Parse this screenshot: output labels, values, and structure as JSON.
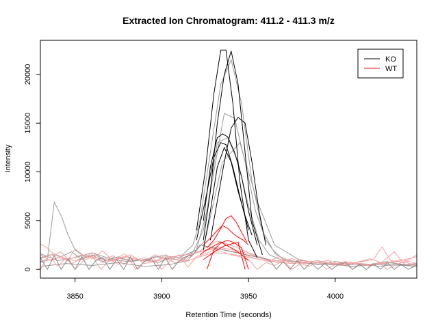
{
  "chart_data": {
    "type": "line",
    "title": "Extracted Ion Chromatogram: 411.2 - 411.3 m/z",
    "xlabel": "Retention Time (seconds)",
    "ylabel": "Intensity",
    "xlim": [
      3830,
      4047
    ],
    "ylim": [
      -900,
      23500
    ],
    "xticks": [
      3850,
      3900,
      3950,
      4000
    ],
    "yticks": [
      0,
      5000,
      10000,
      15000,
      20000
    ],
    "grid": false,
    "legend": {
      "position": "top-right",
      "entries": [
        {
          "label": "KO",
          "color": "#000000"
        },
        {
          "label": "WT",
          "color": "#ff0000"
        }
      ]
    },
    "series": [
      {
        "group": "KO",
        "color": "#000000",
        "x": [
          3920,
          3925,
          3930,
          3934,
          3937,
          3941,
          3945,
          3950,
          3955
        ],
        "y": [
          4000,
          10000,
          18000,
          22500,
          22500,
          17000,
          9000,
          3000,
          1200
        ]
      },
      {
        "group": "KO",
        "color": "#000000",
        "x": [
          3924,
          3928,
          3932,
          3936,
          3940,
          3944,
          3948,
          3952,
          3958
        ],
        "y": [
          3000,
          8000,
          15000,
          20000,
          22400,
          19000,
          12000,
          5000,
          1500
        ]
      },
      {
        "group": "KO",
        "color": "#000000",
        "x": [
          3924,
          3928,
          3932,
          3935,
          3938,
          3942,
          3946,
          3950,
          3955
        ],
        "y": [
          5000,
          10500,
          13500,
          13900,
          13600,
          12000,
          9500,
          6000,
          2500
        ]
      },
      {
        "group": "KO",
        "color": "#000000",
        "x": [
          3928,
          3932,
          3936,
          3940,
          3944,
          3948,
          3952,
          3956,
          3960
        ],
        "y": [
          3000,
          7000,
          11000,
          14500,
          15600,
          15000,
          11000,
          6000,
          2500
        ]
      },
      {
        "group": "KO",
        "color": "#000000",
        "x": [
          3920,
          3925,
          3930,
          3934,
          3937,
          3941,
          3945,
          3950
        ],
        "y": [
          3000,
          7000,
          11500,
          13000,
          12800,
          10500,
          7500,
          4000
        ]
      },
      {
        "group": "KO",
        "color": "#000000",
        "x": [
          3924,
          3928,
          3932,
          3936,
          3940,
          3944,
          3948,
          3952
        ],
        "y": [
          2000,
          6000,
          10500,
          12500,
          11000,
          8000,
          5500,
          3500
        ]
      },
      {
        "group": "KO",
        "color": "#999999",
        "x": [
          3830,
          3834,
          3838,
          3842,
          3846,
          3850,
          3856,
          3862,
          3868,
          3875,
          3882,
          3890,
          3898,
          3905,
          3912,
          3918,
          3922,
          3928,
          3934,
          3940,
          3946,
          3952,
          3958,
          3964,
          3970,
          3978,
          3986,
          3995,
          4005,
          4015,
          4025,
          4035,
          4047
        ],
        "y": [
          800,
          1000,
          6900,
          5500,
          3500,
          2000,
          1200,
          1500,
          900,
          1300,
          800,
          1000,
          700,
          1200,
          1500,
          2500,
          5000,
          12000,
          19000,
          21500,
          17000,
          9000,
          4000,
          2000,
          1000,
          800,
          600,
          500,
          400,
          600,
          300,
          500,
          400
        ]
      },
      {
        "group": "KO",
        "color": "#999999",
        "x": [
          3830,
          3836,
          3842,
          3848,
          3854,
          3860,
          3866,
          3872,
          3880,
          3888,
          3896,
          3904,
          3912,
          3918,
          3924,
          3930,
          3936,
          3942,
          3948,
          3954,
          3960,
          3966,
          3972,
          3980,
          3990,
          4000,
          4010,
          4020,
          4030,
          4040,
          4047
        ],
        "y": [
          1200,
          1500,
          1300,
          1800,
          1000,
          1500,
          800,
          1200,
          1000,
          900,
          1300,
          1100,
          900,
          1800,
          4000,
          10000,
          16000,
          15500,
          11000,
          6000,
          3000,
          1500,
          1000,
          700,
          500,
          800,
          600,
          400,
          700,
          500,
          600
        ]
      },
      {
        "group": "KO",
        "color": "#999999",
        "x": [
          3830,
          3840,
          3850,
          3860,
          3870,
          3880,
          3890,
          3900,
          3910,
          3920,
          3926,
          3932,
          3938,
          3944,
          3950,
          3956,
          3962,
          3970,
          3980,
          3990,
          4000,
          4010,
          4020,
          4030,
          4040,
          4047
        ],
        "y": [
          1600,
          900,
          1200,
          1700,
          1100,
          800,
          1000,
          1400,
          1200,
          2000,
          6000,
          13000,
          13500,
          11000,
          6500,
          3000,
          1500,
          900,
          700,
          500,
          600,
          300,
          500,
          800,
          400,
          300
        ]
      },
      {
        "group": "KO",
        "color": "#999999",
        "x": [
          3830,
          3845,
          3860,
          3875,
          3890,
          3905,
          3915,
          3925,
          3935,
          3945,
          3955,
          3965,
          3980,
          3995,
          4010,
          4025,
          4040,
          4047
        ],
        "y": [
          300,
          600,
          400,
          700,
          300,
          500,
          900,
          3000,
          11000,
          13000,
          7000,
          2500,
          900,
          600,
          300,
          500,
          400,
          500
        ]
      },
      {
        "group": "WT",
        "color": "#ff0000",
        "x": [
          3924,
          3928,
          3932,
          3935,
          3938,
          3941,
          3944,
          3947,
          3950
        ],
        "y": [
          2500,
          3200,
          4000,
          4500,
          4200,
          3700,
          3300,
          3000,
          2500
        ]
      },
      {
        "group": "WT",
        "color": "#ff0000",
        "x": [
          3926,
          3930,
          3934,
          3937,
          3940,
          3943,
          3946,
          3949
        ],
        "y": [
          2200,
          3000,
          4200,
          5200,
          5500,
          4800,
          3800,
          2800
        ]
      },
      {
        "group": "WT",
        "color": "#ff0000",
        "x": [
          3922,
          3926,
          3930,
          3934,
          3938,
          3942,
          3946,
          3950
        ],
        "y": [
          1500,
          2000,
          2400,
          2800,
          2400,
          2000,
          1500,
          900
        ]
      },
      {
        "group": "WT",
        "color": "#ff0000",
        "x": [
          3926,
          3930,
          3934,
          3938,
          3942,
          3946,
          3950
        ],
        "y": [
          0,
          2000,
          2700,
          3000,
          2700,
          2200,
          0
        ]
      },
      {
        "group": "WT",
        "color": "#ff0000",
        "x": [
          3924,
          3928,
          3932,
          3936,
          3940,
          3944,
          3948
        ],
        "y": [
          1000,
          1500,
          2000,
          2400,
          2600,
          2800,
          0
        ]
      },
      {
        "group": "WT",
        "color": "#f4a0a0",
        "x": [
          3830,
          3834,
          3838,
          3842,
          3846,
          3850,
          3855,
          3860,
          3866,
          3872,
          3878,
          3884,
          3890,
          3896,
          3902,
          3908,
          3914,
          3920,
          3926,
          3932,
          3938,
          3944,
          3950,
          3956,
          3962,
          3968,
          3975,
          3982,
          3990,
          3998,
          4006,
          4014,
          4022,
          4030,
          4038,
          4047
        ],
        "y": [
          2600,
          2200,
          1500,
          1800,
          1000,
          2100,
          1400,
          1100,
          1900,
          800,
          1600,
          900,
          1200,
          700,
          1500,
          1000,
          1300,
          1700,
          2300,
          2900,
          2600,
          2200,
          1700,
          1300,
          1000,
          800,
          1100,
          700,
          900,
          500,
          800,
          600,
          500,
          700,
          1000,
          600
        ]
      },
      {
        "group": "WT",
        "color": "#f4a0a0",
        "x": [
          3830,
          3836,
          3842,
          3848,
          3854,
          3860,
          3866,
          3872,
          3878,
          3884,
          3890,
          3896,
          3902,
          3908,
          3914,
          3920,
          3926,
          3932,
          3938,
          3944,
          3950,
          3956,
          3962,
          3968,
          3974,
          3980,
          3988,
          3996,
          4004,
          4012,
          4020,
          4028,
          4036,
          4047
        ],
        "y": [
          1500,
          900,
          1300,
          600,
          1100,
          1700,
          1000,
          1400,
          500,
          1200,
          800,
          1500,
          1100,
          700,
          1000,
          1800,
          2000,
          2300,
          2100,
          1900,
          1600,
          1200,
          900,
          1300,
          600,
          1000,
          700,
          900,
          400,
          700,
          1100,
          600,
          800,
          1300
        ]
      },
      {
        "group": "WT",
        "color": "#f4a0a0",
        "x": [
          3830,
          3838,
          3846,
          3854,
          3862,
          3870,
          3878,
          3886,
          3894,
          3902,
          3910,
          3918,
          3924,
          3930,
          3936,
          3942,
          3948,
          3954,
          3960,
          3968,
          3976,
          3986,
          3996,
          4006,
          4016,
          4026,
          4034,
          4040,
          4047
        ],
        "y": [
          1100,
          1600,
          1000,
          1500,
          1200,
          900,
          1300,
          1000,
          800,
          1200,
          1400,
          1600,
          1900,
          2100,
          2000,
          1800,
          1500,
          1100,
          900,
          700,
          600,
          800,
          500,
          700,
          400,
          600,
          1800,
          500,
          400
        ]
      },
      {
        "group": "WT",
        "color": "#f4a0a0",
        "x": [
          3830,
          3840,
          3850,
          3858,
          3866,
          3874,
          3882,
          3890,
          3898,
          3906,
          3914,
          3922,
          3930,
          3938,
          3946,
          3954,
          3962,
          3972,
          3982,
          3992,
          4002,
          4012,
          4022,
          4027,
          4032,
          4040,
          4047
        ],
        "y": [
          700,
          1200,
          900,
          1400,
          700,
          1000,
          1500,
          600,
          900,
          1100,
          800,
          1300,
          1700,
          1600,
          1400,
          1100,
          800,
          1000,
          600,
          800,
          500,
          700,
          1000,
          2300,
          900,
          700,
          1500
        ]
      },
      {
        "group": "WT",
        "color": "#f4a0a0",
        "x": [
          3830,
          3835,
          3840,
          3845,
          3850,
          3855,
          3860,
          3865,
          3870,
          3875,
          3880,
          3885,
          3890,
          3895,
          3900,
          3905,
          3910,
          3915,
          3920,
          3925,
          3930,
          3935,
          3940,
          3945,
          3950,
          3955,
          3960,
          3965,
          3970,
          3975,
          3980,
          3985,
          3990,
          3995,
          4000,
          4005,
          4010,
          4015,
          4020,
          4025,
          4030,
          4035,
          4040,
          4047
        ],
        "y": [
          0,
          1500,
          300,
          1200,
          0,
          900,
          1300,
          0,
          1000,
          500,
          1400,
          0,
          800,
          1200,
          0,
          900,
          1500,
          200,
          1300,
          1600,
          2000,
          1800,
          1500,
          1300,
          1000,
          0,
          700,
          400,
          900,
          0,
          600,
          300,
          800,
          0,
          500,
          700,
          0,
          600,
          300,
          700,
          0,
          500,
          800,
          300
        ]
      },
      {
        "group": "KO",
        "color": "#888888",
        "x": [
          3830,
          3834,
          3838,
          3842,
          3846,
          3850,
          3854,
          3858,
          3862,
          3866,
          3870,
          3874,
          3878,
          3882,
          3886,
          3890,
          3894,
          3898,
          3902,
          3906,
          3910,
          3914,
          3918,
          3922,
          3962,
          3966,
          3970,
          3974,
          3978,
          3982,
          3986,
          3990,
          3994,
          3998,
          4002,
          4006,
          4010,
          4014,
          4018,
          4022,
          4026,
          4030,
          4034,
          4038,
          4042,
          4047
        ],
        "y": [
          1200,
          0,
          1400,
          0,
          1100,
          0,
          1300,
          0,
          900,
          1200,
          0,
          1000,
          0,
          1300,
          0,
          800,
          1100,
          0,
          1200,
          0,
          900,
          1300,
          1500,
          2500,
          1000,
          0,
          800,
          0,
          900,
          0,
          700,
          0,
          600,
          0,
          500,
          700,
          0,
          500,
          0,
          600,
          0,
          700,
          0,
          500,
          0,
          400
        ]
      }
    ]
  }
}
